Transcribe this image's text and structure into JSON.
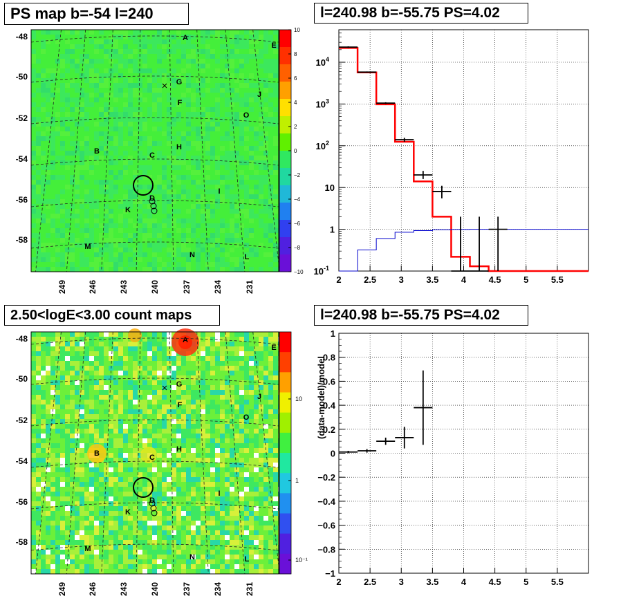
{
  "panels": {
    "top_left": {
      "title": "PS map b=-54 l=240"
    },
    "bottom_left": {
      "title": "2.50<logE<3.00 count maps"
    },
    "top_right": {
      "title": "l=240.98 b=-55.75 PS=4.02"
    },
    "bottom_right": {
      "title": "l=240.98 b=-55.75 PS=4.02"
    }
  },
  "colors": {
    "map_bg": "#3ef03e",
    "red_line": "#ff0000",
    "blue_line": "#0000cc",
    "data": "#000000"
  },
  "chart_data": [
    {
      "type": "heatmap",
      "name": "PS map",
      "x_ticks": [
        "249",
        "246",
        "243",
        "240",
        "237",
        "234",
        "231"
      ],
      "y_ticks": [
        "-48",
        "-50",
        "-52",
        "-54",
        "-56",
        "-58"
      ],
      "colorbar_ticks": [
        "10",
        "8",
        "6",
        "4",
        "2",
        "0",
        "−2",
        "−4",
        "−6",
        "−8",
        "−10"
      ],
      "colorbar_range": [
        -10,
        10
      ],
      "sources": [
        "A",
        "E",
        "G",
        "F",
        "J",
        "O",
        "H",
        "B",
        "C",
        "D",
        "I",
        "K",
        "M",
        "N",
        "L"
      ]
    },
    {
      "type": "heatmap",
      "name": "count maps",
      "x_ticks": [
        "249",
        "246",
        "243",
        "240",
        "237",
        "234",
        "231"
      ],
      "y_ticks": [
        "-48",
        "-50",
        "-52",
        "-54",
        "-56",
        "-58"
      ],
      "colorbar_ticks": [
        "10",
        "1",
        "10⁻¹"
      ],
      "colorbar_scale": "log",
      "sources": [
        "A",
        "E",
        "G",
        "F",
        "J",
        "O",
        "H",
        "B",
        "C",
        "D",
        "I",
        "K",
        "M",
        "N",
        "L"
      ]
    },
    {
      "type": "line",
      "xlim": [
        2,
        6
      ],
      "ylim": [
        0.1,
        60000
      ],
      "yscale": "log",
      "grid": true,
      "x_ticks": [
        "2",
        "2.5",
        "3",
        "3.5",
        "4",
        "4.5",
        "5",
        "5.5"
      ],
      "y_ticks": [
        "10^-1",
        "1",
        "10",
        "10^2",
        "10^3",
        "10^4"
      ],
      "series": [
        {
          "style": "step-red",
          "bins": [
            [
              2.0,
              2.3,
              22000
            ],
            [
              2.3,
              2.6,
              5700
            ],
            [
              2.6,
              2.9,
              980
            ],
            [
              2.9,
              3.2,
              125
            ],
            [
              3.2,
              3.5,
              14
            ],
            [
              3.5,
              3.8,
              2
            ],
            [
              3.8,
              4.1,
              0.22
            ],
            [
              4.1,
              4.4,
              0.13
            ],
            [
              4.4,
              6.0,
              0.1
            ]
          ]
        },
        {
          "style": "step-blue",
          "bins": [
            [
              2.0,
              2.3,
              0.1
            ],
            [
              2.3,
              2.6,
              0.32
            ],
            [
              2.6,
              2.9,
              0.6
            ],
            [
              2.9,
              3.2,
              0.85
            ],
            [
              3.2,
              3.5,
              0.93
            ],
            [
              3.5,
              3.8,
              0.97
            ],
            [
              3.8,
              4.1,
              0.99
            ],
            [
              4.1,
              6.0,
              1.0
            ]
          ]
        },
        {
          "style": "points-black",
          "points": [
            {
              "x": 2.15,
              "xerr": 0.15,
              "y": 23000,
              "ylo": 22000,
              "yhi": 24000
            },
            {
              "x": 2.45,
              "xerr": 0.15,
              "y": 5800,
              "ylo": 5600,
              "yhi": 6000
            },
            {
              "x": 2.75,
              "xerr": 0.15,
              "y": 1050,
              "ylo": 1000,
              "yhi": 1100
            },
            {
              "x": 3.05,
              "xerr": 0.15,
              "y": 140,
              "ylo": 125,
              "yhi": 155
            },
            {
              "x": 3.35,
              "xerr": 0.15,
              "y": 20,
              "ylo": 16,
              "yhi": 25
            },
            {
              "x": 3.65,
              "xerr": 0.15,
              "y": 8,
              "ylo": 5.5,
              "yhi": 11
            },
            {
              "x": 3.95,
              "xerr": 0.15,
              "y": 0.1,
              "ylo": 0.1,
              "yhi": 2
            },
            {
              "x": 4.25,
              "xerr": 0.15,
              "y": 0.1,
              "ylo": 0.1,
              "yhi": 2
            },
            {
              "x": 4.55,
              "xerr": 0.15,
              "y": 1,
              "ylo": 0.1,
              "yhi": 2
            }
          ]
        }
      ]
    },
    {
      "type": "scatter",
      "xlim": [
        2,
        6
      ],
      "ylim": [
        -1,
        1
      ],
      "grid": true,
      "ylabel": "(data-model)/model",
      "x_ticks": [
        "2",
        "2.5",
        "3",
        "3.5",
        "4",
        "4.5",
        "5",
        "5.5"
      ],
      "y_ticks": [
        "1",
        "0.8",
        "0.6",
        "0.4",
        "0.2",
        "0",
        "−0.2",
        "−0.4",
        "−0.6",
        "−0.8",
        "−1"
      ],
      "points": [
        {
          "x": 2.15,
          "xerr": 0.15,
          "y": 0.01,
          "yerr": 0.01
        },
        {
          "x": 2.45,
          "xerr": 0.15,
          "y": 0.02,
          "yerr": 0.015
        },
        {
          "x": 2.75,
          "xerr": 0.15,
          "y": 0.1,
          "yerr": 0.03
        },
        {
          "x": 3.05,
          "xerr": 0.15,
          "y": 0.13,
          "yerr": 0.09
        },
        {
          "x": 3.35,
          "xerr": 0.15,
          "y": 0.38,
          "yerr": 0.31
        }
      ]
    }
  ]
}
